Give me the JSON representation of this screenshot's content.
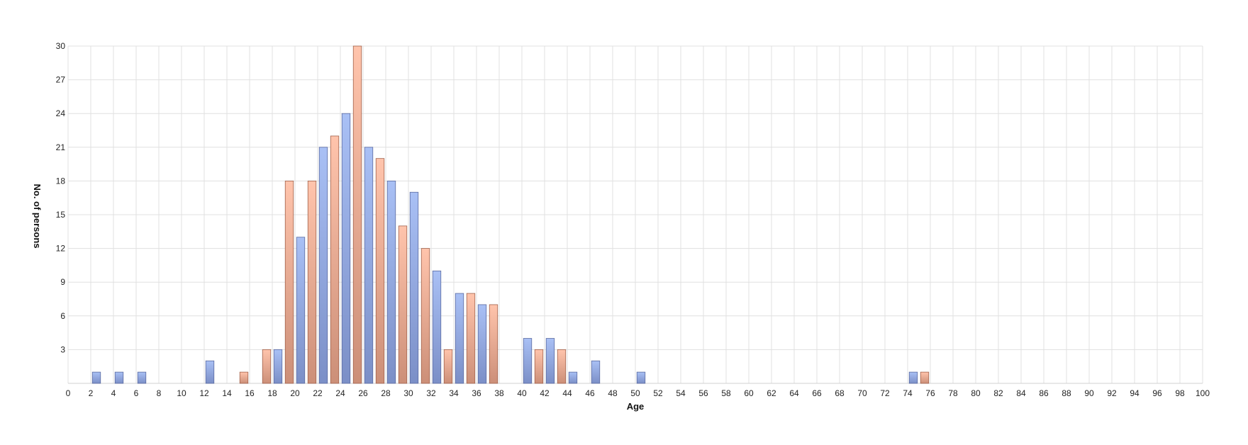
{
  "chart_data": {
    "type": "bar",
    "xlabel": "Age",
    "ylabel": "No. of persons",
    "xlim": [
      0,
      100
    ],
    "ylim": [
      0,
      30
    ],
    "x_ticks": [
      0,
      2,
      4,
      6,
      8,
      10,
      12,
      14,
      16,
      18,
      20,
      22,
      24,
      26,
      28,
      30,
      32,
      34,
      36,
      38,
      40,
      42,
      44,
      46,
      48,
      50,
      52,
      54,
      56,
      58,
      60,
      62,
      64,
      66,
      68,
      70,
      72,
      74,
      76,
      78,
      80,
      82,
      84,
      86,
      88,
      90,
      92,
      94,
      96,
      98,
      100
    ],
    "y_ticks": [
      3,
      6,
      9,
      12,
      15,
      18,
      21,
      24,
      27,
      30
    ],
    "grid": true,
    "legend": "none",
    "colors": {
      "blue_top": "#a9c0f5",
      "blue_bottom": "#7b8fc7",
      "blue_stroke": "#5a6aa0",
      "orange_top": "#ffc4ac",
      "orange_bottom": "#cc8f78",
      "orange_stroke": "#a0604a",
      "grid": "#e0e0e0"
    },
    "series": [
      {
        "values": [
          {
            "x": 2.5,
            "y": 1
          },
          {
            "x": 4.5,
            "y": 1
          },
          {
            "x": 6.5,
            "y": 1
          },
          {
            "x": 12.5,
            "y": 2
          },
          {
            "x": 18.5,
            "y": 3
          },
          {
            "x": 20.5,
            "y": 13
          },
          {
            "x": 22.5,
            "y": 21
          },
          {
            "x": 24.5,
            "y": 24
          },
          {
            "x": 26.5,
            "y": 21
          },
          {
            "x": 28.5,
            "y": 18
          },
          {
            "x": 30.5,
            "y": 17
          },
          {
            "x": 32.5,
            "y": 10
          },
          {
            "x": 34.5,
            "y": 8
          },
          {
            "x": 36.5,
            "y": 7
          },
          {
            "x": 40.5,
            "y": 4
          },
          {
            "x": 42.5,
            "y": 4
          },
          {
            "x": 44.5,
            "y": 1
          },
          {
            "x": 46.5,
            "y": 2
          },
          {
            "x": 50.5,
            "y": 1
          },
          {
            "x": 74.5,
            "y": 1
          }
        ]
      },
      {
        "values": [
          {
            "x": 15.5,
            "y": 1
          },
          {
            "x": 17.5,
            "y": 3
          },
          {
            "x": 19.5,
            "y": 18
          },
          {
            "x": 21.5,
            "y": 18
          },
          {
            "x": 23.5,
            "y": 22
          },
          {
            "x": 25.5,
            "y": 30
          },
          {
            "x": 27.5,
            "y": 20
          },
          {
            "x": 29.5,
            "y": 14
          },
          {
            "x": 31.5,
            "y": 12
          },
          {
            "x": 33.5,
            "y": 3
          },
          {
            "x": 35.5,
            "y": 8
          },
          {
            "x": 37.5,
            "y": 7
          },
          {
            "x": 41.5,
            "y": 3
          },
          {
            "x": 43.5,
            "y": 3
          },
          {
            "x": 75.5,
            "y": 1
          }
        ]
      }
    ]
  }
}
